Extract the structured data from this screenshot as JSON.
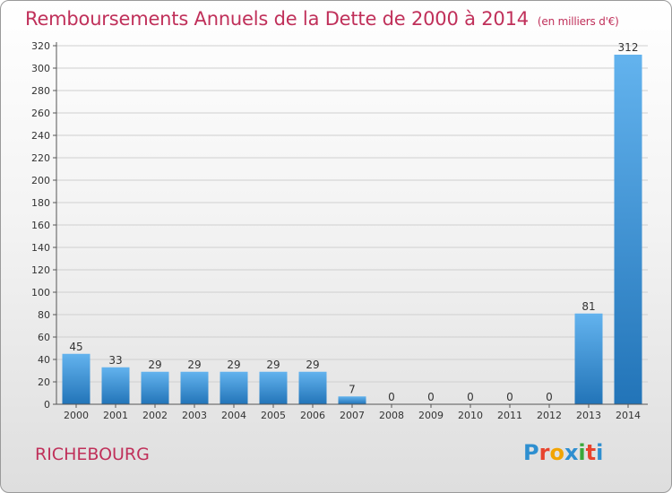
{
  "header": {
    "title": "Remboursements Annuels de la Dette de 2000 à 2014",
    "subtitle": "(en milliers d'€)"
  },
  "footer": {
    "commune": "RICHEBOURG",
    "logo": "Proxiti",
    "logo_colors": [
      "#2e8fd0",
      "#e8442e",
      "#f2a400",
      "#2e8fd0",
      "#3aa83a",
      "#e8442e",
      "#2e8fd0"
    ]
  },
  "colors": {
    "title": "#c0305a",
    "bar_light": "#63b3ee",
    "bar_dark": "#2274b8",
    "axis": "#555555",
    "grid": "#cfcfcf"
  },
  "chart_data": {
    "type": "bar",
    "title": "Remboursements Annuels de la Dette de 2000 à 2014",
    "subtitle": "(en milliers d'€)",
    "categories": [
      "2000",
      "2001",
      "2002",
      "2003",
      "2004",
      "2005",
      "2006",
      "2007",
      "2008",
      "2009",
      "2010",
      "2011",
      "2012",
      "2013",
      "2014"
    ],
    "values": [
      45,
      33,
      29,
      29,
      29,
      29,
      29,
      7,
      0,
      0,
      0,
      0,
      0,
      81,
      312
    ],
    "ylim": [
      0,
      320
    ],
    "yticks": [
      0,
      20,
      40,
      60,
      80,
      100,
      120,
      140,
      160,
      180,
      200,
      220,
      240,
      260,
      280,
      300,
      320
    ],
    "grid": true,
    "data_labels": true
  }
}
